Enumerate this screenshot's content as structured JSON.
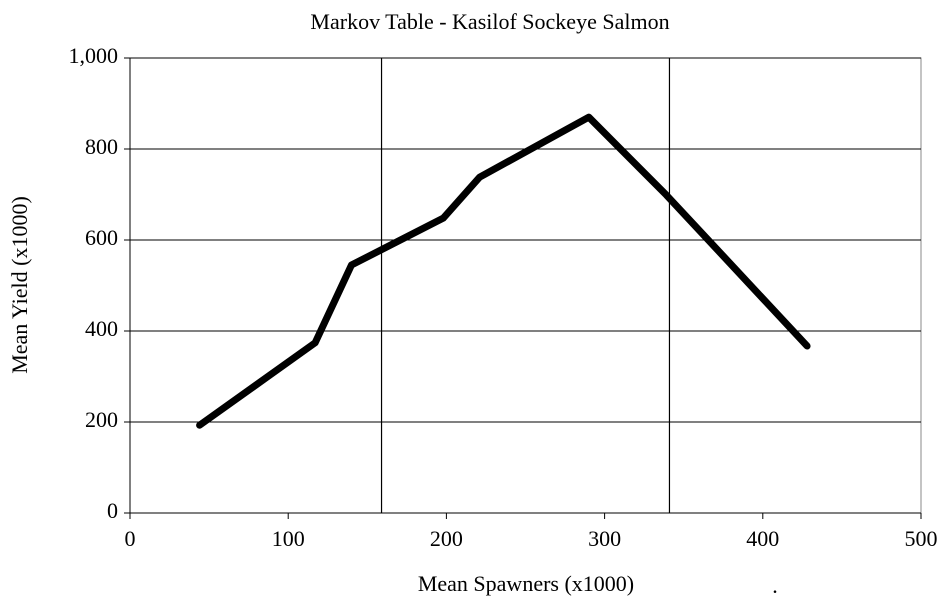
{
  "chart_data": {
    "type": "line",
    "title": "Markov Table - Kasilof Sockeye Salmon",
    "x_label": "Mean Spawners (x1000)",
    "y_label": "Mean Yield (x1000)",
    "annotation": ".",
    "x": [
      44,
      117,
      140,
      198,
      221,
      290,
      339,
      428
    ],
    "series": [
      {
        "color": "#000000",
        "values": [
          193,
          374,
          545,
          648,
          738,
          870,
          699,
          367
        ]
      }
    ],
    "reference_lines": [
      159,
      341
    ],
    "xlim": [
      0,
      500
    ],
    "xticks": [
      0,
      100,
      200,
      300,
      400,
      500
    ],
    "ylim": [
      0,
      1000
    ],
    "yticks": [
      0,
      200,
      400,
      600,
      800,
      {
        "value": 1000,
        "label": "1,000"
      }
    ],
    "grid": true
  }
}
